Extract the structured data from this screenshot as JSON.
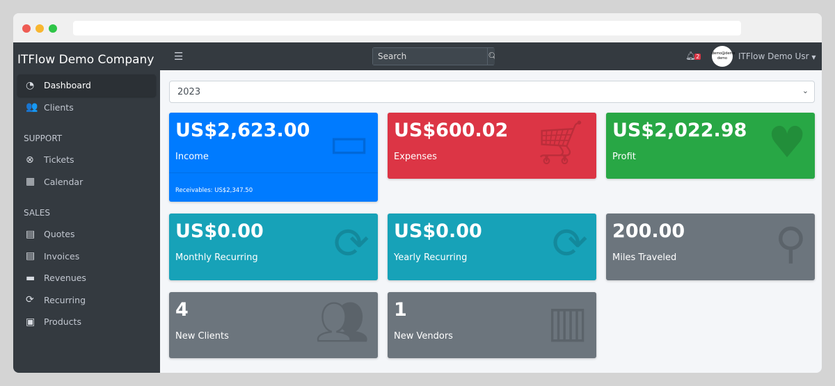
{
  "sidebar": {
    "brand": "ITFlow Demo Company",
    "items": [
      {
        "label": "Dashboard",
        "icon": "tachometer-icon"
      },
      {
        "label": "Clients",
        "icon": "users-icon"
      }
    ],
    "support_header": "SUPPORT",
    "support": [
      {
        "label": "Tickets",
        "icon": "life-ring-icon"
      },
      {
        "label": "Calendar",
        "icon": "calendar-icon"
      }
    ],
    "sales_header": "SALES",
    "sales": [
      {
        "label": "Quotes",
        "icon": "file-icon"
      },
      {
        "label": "Invoices",
        "icon": "invoice-icon"
      },
      {
        "label": "Revenues",
        "icon": "credit-card-icon"
      },
      {
        "label": "Recurring",
        "icon": "sync-icon"
      },
      {
        "label": "Products",
        "icon": "box-icon"
      }
    ]
  },
  "top": {
    "search_placeholder": "Search",
    "notifications": "2",
    "avatar_text": "demo@demo demo",
    "user": "ITFlow Demo Usr"
  },
  "year": "2023",
  "cards": [
    {
      "value": "US$2,623.00",
      "label": "Income",
      "footer": "Receivables: US$2,347.50",
      "color": "#007bff"
    },
    {
      "value": "US$600.02",
      "label": "Expenses",
      "color": "#dc3545"
    },
    {
      "value": "US$2,022.98",
      "label": "Profit",
      "color": "#28a745"
    },
    {
      "value": "US$0.00",
      "label": "Monthly Recurring",
      "color": "#17a2b8"
    },
    {
      "value": "US$0.00",
      "label": "Yearly Recurring",
      "color": "#17a2b8"
    },
    {
      "value": "200.00",
      "label": "Miles Traveled",
      "color": "#6c757d"
    },
    {
      "value": "4",
      "label": "New Clients",
      "color": "#6c757d"
    },
    {
      "value": "1",
      "label": "New Vendors",
      "color": "#6c757d"
    }
  ]
}
